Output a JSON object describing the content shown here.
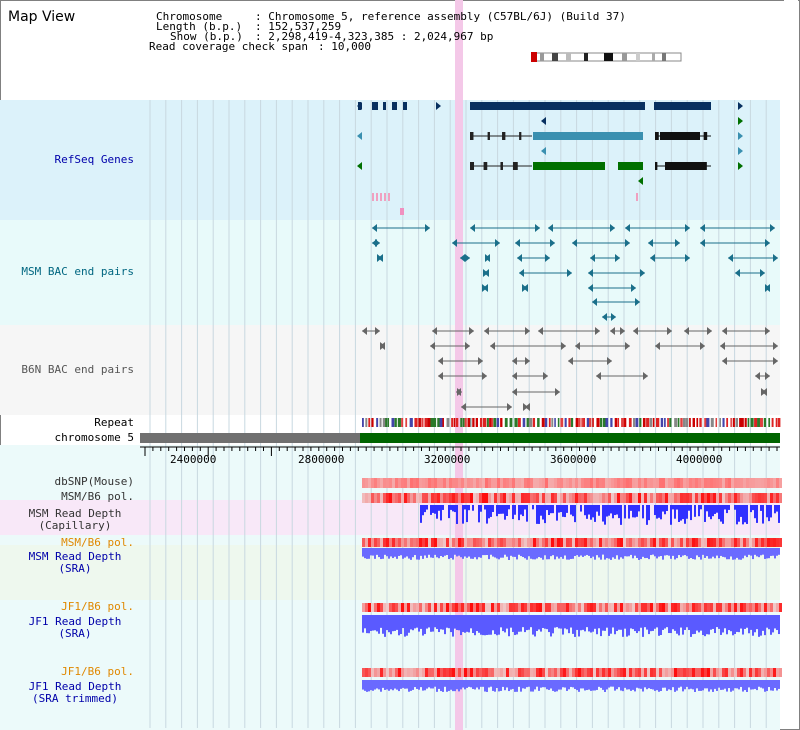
{
  "app": {
    "title": "Map View"
  },
  "info": {
    "chromosome_key": "Chromosome",
    "chromosome_val": ": Chromosome 5, reference assembly (C57BL/6J) (Build 37)",
    "length_key": "Length (b.p.)",
    "length_val": ": 152,537,259",
    "show_key": "Show (b.p.)",
    "show_val": ": 2,298,419-4,323,385 : 2,024,967 bp",
    "coverage_key": "Read coverage check span",
    "coverage_val": ": 10,000"
  },
  "tracks": {
    "refseq": "RefSeq Genes",
    "msm_bac": "MSM BAC end pairs",
    "b6n_bac": "B6N BAC end pairs",
    "repeat": "Repeat",
    "chromosome": "chromosome 5",
    "dbsnp": "dbSNP(Mouse)",
    "msm_b6_pol_1": "MSM/B6 pol.",
    "msm_read_depth_cap_1": "MSM Read Depth",
    "msm_read_depth_cap_2": "(Capillary)",
    "msm_b6_pol_2": "MSM/B6 pol.",
    "msm_read_depth_sra_1": "MSM Read Depth",
    "msm_read_depth_sra_2": "(SRA)",
    "jf1_b6_pol_1": "JF1/B6 pol.",
    "jf1_read_depth_sra_1": "JF1 Read Depth",
    "jf1_read_depth_sra_2": "(SRA)",
    "jf1_b6_pol_2": "JF1/B6 pol.",
    "jf1_read_depth_trim_1": "JF1 Read Depth",
    "jf1_read_depth_trim_2": "(SRA trimmed)"
  },
  "axis": {
    "ticks": [
      "2400000",
      "2800000",
      "3200000",
      "3600000",
      "4000000"
    ]
  },
  "colors": {
    "refseq_bg": "#dcf2fa",
    "bac_bg": "#e8fafa",
    "b6n_bg": "#f6f6f6",
    "gene_dark": "#083060",
    "gene_teal": "#3a90b0",
    "gene_green": "#007000",
    "chrom_green": "#006400",
    "chrom_gray": "#707070",
    "highlight": "#f4c8e8",
    "depth_blue": "#3030ff",
    "label_blue": "#0000aa",
    "label_orange": "#e08800"
  }
}
